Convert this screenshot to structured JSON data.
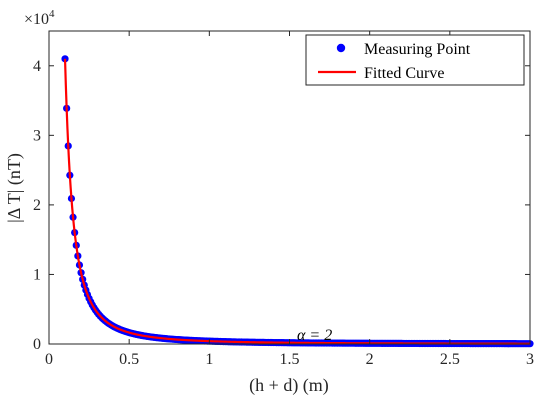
{
  "chart_data": {
    "type": "scatter",
    "title": "",
    "xlabel": "(h + d) (m)",
    "ylabel": "|Δ T| (nT)",
    "y_multiplier": "×10",
    "y_multiplier_exp": "4",
    "xlim": [
      0,
      3
    ],
    "ylim": [
      0,
      45000
    ],
    "x_ticks": [
      0,
      0.5,
      1,
      1.5,
      2,
      2.5,
      3
    ],
    "x_tick_labels": [
      "0",
      "0.5",
      "1",
      "1.5",
      "2",
      "2.5",
      "3"
    ],
    "y_ticks": [
      0,
      10000,
      20000,
      30000,
      40000
    ],
    "y_tick_labels": [
      "0",
      "1",
      "2",
      "3",
      "4"
    ],
    "grid": false,
    "legend_position": "top-right",
    "annotation": {
      "text": "α = 2",
      "x": 1.55,
      "y": 1200
    },
    "model": {
      "form": "y = k / x^2",
      "k": 410
    },
    "series": [
      {
        "name": "Measuring Point",
        "kind": "scatter",
        "color": "#0000ff",
        "x_start": 0.1,
        "x_end": 3.0,
        "x_step": 0.01
      },
      {
        "name": "Fitted Curve",
        "kind": "line",
        "color": "#ff0000",
        "x_start": 0.1,
        "x_end": 3.0,
        "x_step": 0.005
      }
    ]
  }
}
